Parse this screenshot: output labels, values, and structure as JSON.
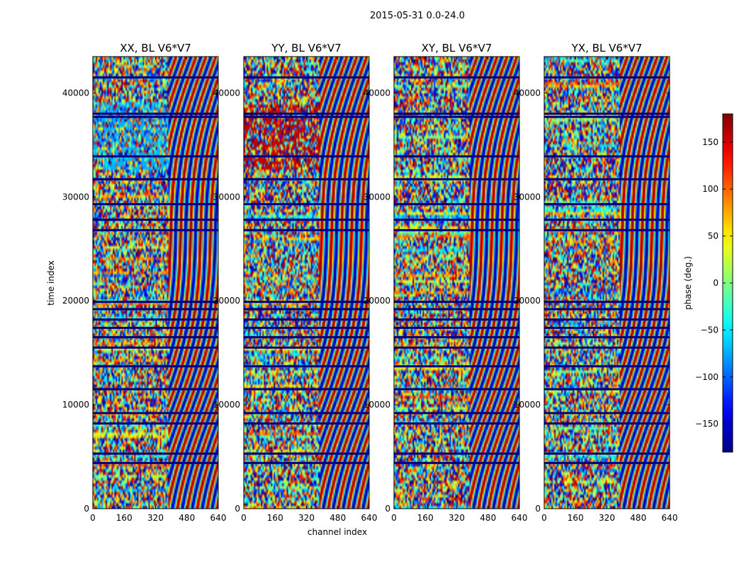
{
  "figure": {
    "title": "2015-05-31 0.0-24.0"
  },
  "chart_data": {
    "type": "heatmap",
    "title": "2015-05-31 0.0-24.0",
    "xlabel": "channel index",
    "ylabel": "time index",
    "xlim": [
      0,
      640
    ],
    "ylim": [
      0,
      43500
    ],
    "x_ticks": [
      0,
      160,
      320,
      480,
      640
    ],
    "y_ticks": [
      0,
      10000,
      20000,
      30000,
      40000
    ],
    "colormap": "jet",
    "colorbar": {
      "label": "phase (deg.)",
      "range": [
        -180,
        180
      ],
      "ticks": [
        150,
        100,
        50,
        0,
        -50,
        -100,
        -150
      ],
      "tick_labels": [
        "150",
        "100",
        "50",
        "0",
        "−50",
        "−100",
        "−150"
      ]
    },
    "panels": [
      {
        "title": "XX, BL V6*V7"
      },
      {
        "title": "YY, BL V6*V7"
      },
      {
        "title": "XY, BL V6*V7"
      },
      {
        "title": "YX, BL V6*V7"
      }
    ],
    "values_note": "phase values rendered as noisy visibility texture",
    "time_gap_rows": [
      4400,
      5300,
      8200,
      9200,
      11500,
      13700,
      15500,
      16500,
      17400,
      18200,
      19200,
      19900,
      26800,
      27800,
      29300,
      31700,
      33900,
      37700,
      38000,
      41500
    ]
  }
}
